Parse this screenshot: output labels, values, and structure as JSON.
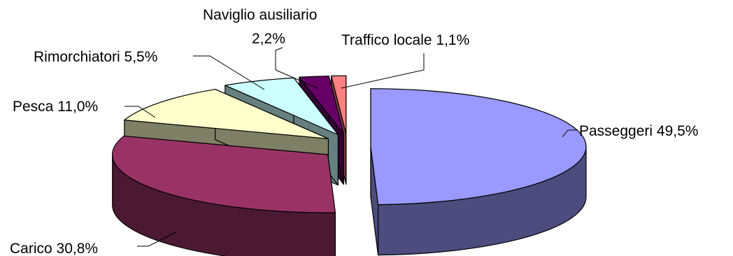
{
  "chart_data": {
    "type": "pie",
    "variant": "3d-exploded",
    "title": "",
    "legend": "none",
    "series": [
      {
        "slices": [
          {
            "label": "Passeggeri 49,5%",
            "name": "Passeggeri",
            "value": 49.5,
            "color": "#9999ff",
            "side_color": "#4c4c7f",
            "exploded": true
          },
          {
            "label": "Carico  30,8%",
            "name": "Carico",
            "value": 30.8,
            "color": "#993366",
            "side_color": "#4c1932",
            "exploded": true
          },
          {
            "label": "Pesca 11,0%",
            "name": "Pesca",
            "value": 11.0,
            "color": "#ffffcc",
            "side_color": "#7f7f66",
            "exploded": true
          },
          {
            "label": "Rimorchiatori 5,5%",
            "name": "Rimorchiatori",
            "value": 5.5,
            "color": "#ccffff",
            "side_color": "#667f7f",
            "exploded": true
          },
          {
            "label_lines": [
              "Naviglio ausiliario",
              "2,2%"
            ],
            "name": "Naviglio ausiliario",
            "value": 2.2,
            "color": "#660066",
            "side_color": "#330033",
            "exploded": true
          },
          {
            "label": "Traffico locale 1,1%",
            "name": "Traffico locale",
            "value": 1.1,
            "color": "#ff8080",
            "side_color": "#7f4040",
            "exploded": true
          }
        ]
      }
    ]
  }
}
